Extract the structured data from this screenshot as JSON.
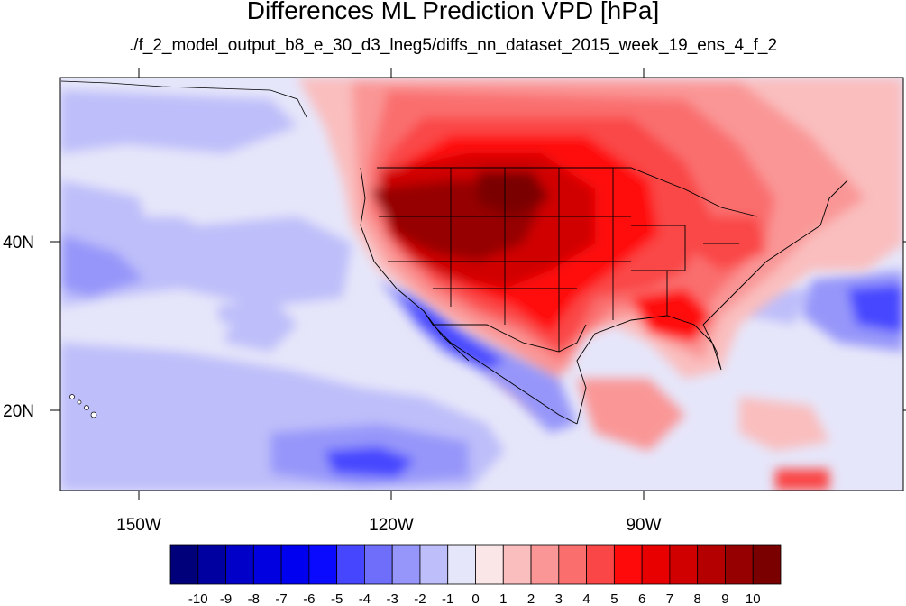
{
  "title": "Differences ML Prediction VPD [hPa]",
  "subtitle": "./f_2_model_output_b8_e_30_d3_lneg5/diffs_nn_dataset_2015_week_19_ens_4_f_2",
  "lon_labels": [
    "150W",
    "120W",
    "90W"
  ],
  "lat_labels": [
    "40N",
    "20N"
  ],
  "colorbar": {
    "labels": [
      "-10",
      "-9",
      "-8",
      "-7",
      "-6",
      "-5",
      "-4",
      "-3",
      "-2",
      "-1",
      "0",
      "1",
      "2",
      "3",
      "4",
      "5",
      "6",
      "7",
      "8",
      "9",
      "10"
    ],
    "colors": [
      "#00007a",
      "#0000a0",
      "#0000c8",
      "#0000e0",
      "#0000f0",
      "#0a0aff",
      "#4646ff",
      "#6e6efa",
      "#9696fa",
      "#bebefa",
      "#e6e6fa",
      "#fae6e6",
      "#fabebe",
      "#fa9696",
      "#fa6e6e",
      "#fa4646",
      "#ff0a0a",
      "#e80000",
      "#d00000",
      "#b40000",
      "#960000",
      "#7a0000"
    ]
  }
}
